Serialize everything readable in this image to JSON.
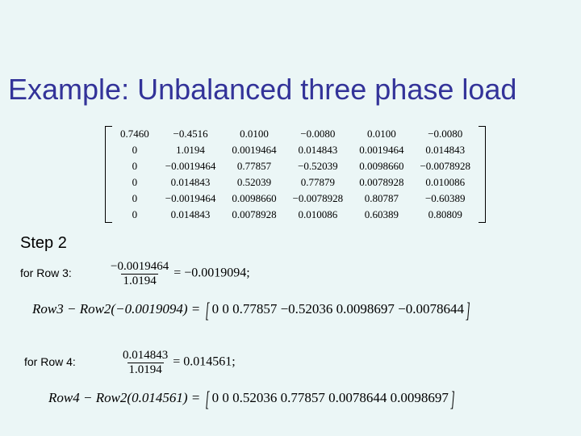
{
  "title": "Example: Unbalanced three phase load",
  "step_label": "Step 2",
  "background_color": "#ebf6f6",
  "title_color": "#333399",
  "matrix": {
    "rows": [
      [
        "0.7460",
        "−0.4516",
        "0.0100",
        "−0.0080",
        "0.0100",
        "−0.0080"
      ],
      [
        "0",
        "1.0194",
        "0.0019464",
        "0.014843",
        "0.0019464",
        "0.014843"
      ],
      [
        "0",
        "−0.0019464",
        "0.77857",
        "−0.52039",
        "0.0098660",
        "−0.0078928"
      ],
      [
        "0",
        "0.014843",
        "0.52039",
        "0.77879",
        "0.0078928",
        "0.010086"
      ],
      [
        "0",
        "−0.0019464",
        "0.0098660",
        "−0.0078928",
        "0.80787",
        "−0.60389"
      ],
      [
        "0",
        "0.014843",
        "0.0078928",
        "0.010086",
        "0.60389",
        "0.80809"
      ]
    ],
    "font_family": "Times New Roman",
    "font_size": 13,
    "bracket_color": "#000000"
  },
  "row3": {
    "label": "for Row 3:",
    "frac_num": "−0.0019464",
    "frac_den": "1.0194",
    "frac_result": "−0.0019094",
    "row_prefix": "Row3 − Row2",
    "row_factor": "−0.0019094",
    "row_result": "0  0  0.77857  −0.52036  0.0098697  −0.0078644"
  },
  "row4": {
    "label": "for Row 4:",
    "frac_num": "0.014843",
    "frac_den": "1.0194",
    "frac_result": "0.014561",
    "row_prefix": "Row4 − Row2",
    "row_factor": "0.014561",
    "row_result": "0  0  0.52036  0.77857  0.0078644  0.0098697"
  }
}
